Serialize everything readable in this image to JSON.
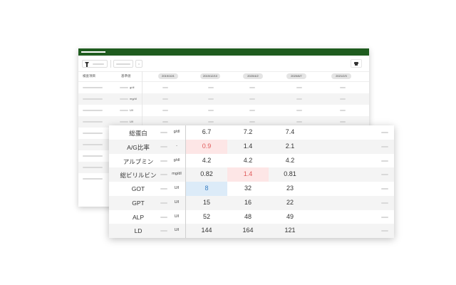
{
  "app": {
    "header_color": "#1f5c1f",
    "toolbar": {
      "filter_icon": "filter-icon",
      "print_icon": "printer-icon"
    }
  },
  "background_table": {
    "headers": {
      "item": "検査項目",
      "ref": "基準値"
    },
    "dates": [
      "2019/10/1",
      "2019/12/10",
      "2020/4/2",
      "2020/8/7",
      "2021/2/3"
    ],
    "units": [
      "g/dl",
      "mg/dl",
      "U/l",
      "U/l",
      "",
      "",
      "",
      "",
      ""
    ]
  },
  "front_table": {
    "rows": [
      {
        "name": "総蛋白",
        "unit": "g/dl",
        "values": [
          "6.7",
          "7.2",
          "7.4"
        ]
      },
      {
        "name": "A/G比率",
        "unit": "-",
        "values": [
          "0.9",
          "1.4",
          "2.1"
        ]
      },
      {
        "name": "アルブミン",
        "unit": "g/dl",
        "values": [
          "4.2",
          "4.2",
          "4.2"
        ]
      },
      {
        "name": "総ビリルビン",
        "unit": "mg/dl",
        "values": [
          "0.82",
          "1.4",
          "0.81"
        ]
      },
      {
        "name": "GOT",
        "unit": "U/l",
        "values": [
          "8",
          "32",
          "23"
        ]
      },
      {
        "name": "GPT",
        "unit": "U/l",
        "values": [
          "15",
          "16",
          "22"
        ]
      },
      {
        "name": "ALP",
        "unit": "U/l",
        "values": [
          "52",
          "48",
          "49"
        ]
      },
      {
        "name": "LD",
        "unit": "U/l",
        "values": [
          "144",
          "164",
          "121"
        ]
      }
    ],
    "highlights": [
      {
        "row": 1,
        "col": 0,
        "type": "high",
        "bg": "#fde6e6",
        "color": "#e05a5a"
      },
      {
        "row": 3,
        "col": 1,
        "type": "high",
        "bg": "#fde6e6",
        "color": "#e05a5a"
      },
      {
        "row": 4,
        "col": 0,
        "type": "low",
        "bg": "#dcebf8",
        "color": "#3a7fc2"
      }
    ]
  }
}
